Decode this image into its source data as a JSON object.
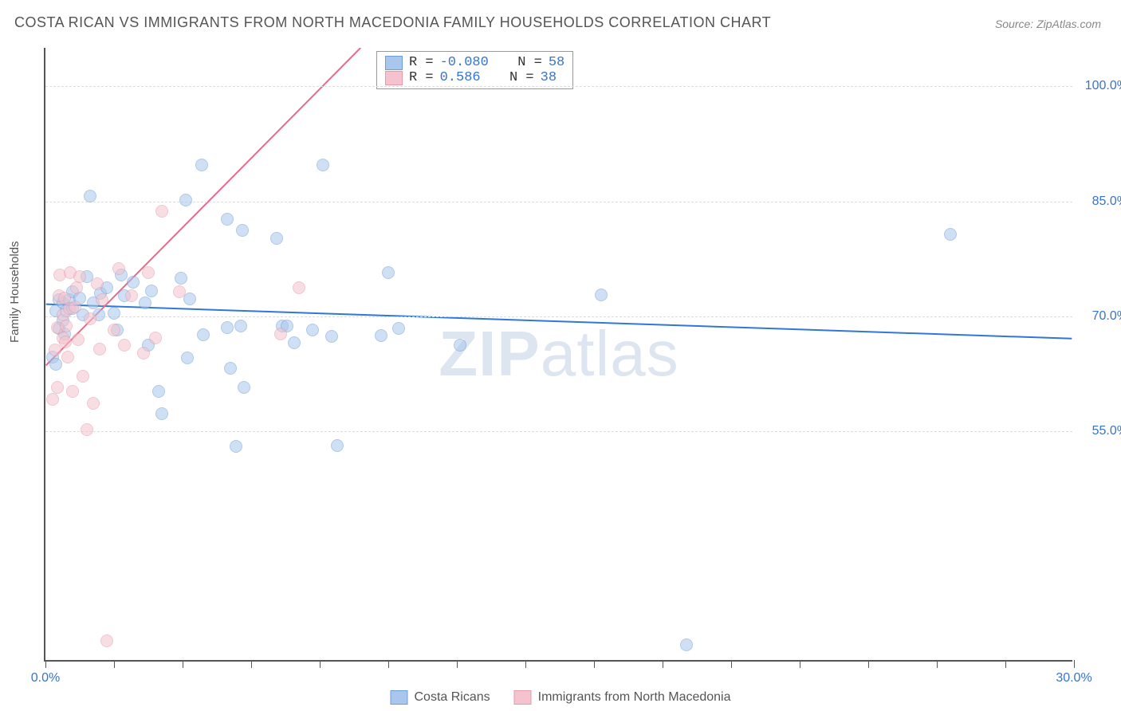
{
  "title": "COSTA RICAN VS IMMIGRANTS FROM NORTH MACEDONIA FAMILY HOUSEHOLDS CORRELATION CHART",
  "source": "Source: ZipAtlas.com",
  "watermark": "ZIPatlas",
  "y_axis_label": "Family Households",
  "chart": {
    "type": "scatter",
    "xlim": [
      0,
      30
    ],
    "ylim": [
      25,
      105
    ],
    "background_color": "#ffffff",
    "grid_color": "#dddddd",
    "axis_color": "#555555",
    "y_ticks": [
      {
        "value": 55.0,
        "label": "55.0%"
      },
      {
        "value": 70.0,
        "label": "70.0%"
      },
      {
        "value": 85.0,
        "label": "85.0%"
      },
      {
        "value": 100.0,
        "label": "100.0%"
      }
    ],
    "x_tick_positions": [
      0,
      2,
      4,
      6,
      8,
      10,
      12,
      14,
      16,
      18,
      20,
      22,
      24,
      26,
      28,
      30
    ],
    "x_tick_labels": [
      {
        "value": 0.0,
        "label": "0.0%"
      },
      {
        "value": 30.0,
        "label": "30.0%"
      }
    ],
    "y_tick_label_color": "#3973cc",
    "x_tick_label_color": "#3973cc",
    "point_radius": 8,
    "point_opacity": 0.55,
    "series": [
      {
        "name": "Costa Ricans",
        "fill_color": "#a9c7ec",
        "stroke_color": "#6f9ed6",
        "correlation_R": "-0.080",
        "correlation_N": "58",
        "trendline": {
          "color": "#2f78d6",
          "width": 2,
          "x1": 0,
          "y1": 71.5,
          "x2": 30,
          "y2": 67.0
        },
        "points": [
          [
            0.2,
            64.5
          ],
          [
            0.3,
            70.5
          ],
          [
            0.4,
            72.0
          ],
          [
            0.4,
            68.2
          ],
          [
            0.5,
            69.3
          ],
          [
            0.5,
            71.5
          ],
          [
            0.55,
            67.5
          ],
          [
            0.6,
            70.5
          ],
          [
            0.7,
            72.0
          ],
          [
            0.8,
            70.8
          ],
          [
            0.8,
            73.0
          ],
          [
            1.0,
            72.2
          ],
          [
            1.1,
            70.0
          ],
          [
            1.2,
            75.0
          ],
          [
            1.3,
            85.5
          ],
          [
            1.4,
            71.5
          ],
          [
            1.55,
            70.0
          ],
          [
            1.6,
            72.8
          ],
          [
            1.8,
            73.5
          ],
          [
            2.0,
            70.2
          ],
          [
            2.1,
            68.0
          ],
          [
            2.2,
            75.2
          ],
          [
            2.3,
            72.5
          ],
          [
            2.55,
            74.3
          ],
          [
            2.9,
            71.5
          ],
          [
            3.0,
            66.0
          ],
          [
            3.1,
            73.1
          ],
          [
            3.3,
            60.0
          ],
          [
            3.4,
            57.1
          ],
          [
            3.95,
            74.8
          ],
          [
            4.1,
            85.0
          ],
          [
            4.15,
            64.4
          ],
          [
            4.2,
            72.1
          ],
          [
            4.55,
            89.5
          ],
          [
            4.6,
            67.4
          ],
          [
            5.3,
            82.5
          ],
          [
            5.3,
            68.3
          ],
          [
            5.4,
            63.0
          ],
          [
            5.55,
            52.8
          ],
          [
            5.7,
            68.5
          ],
          [
            5.75,
            81.0
          ],
          [
            5.8,
            60.5
          ],
          [
            6.75,
            80.0
          ],
          [
            6.9,
            68.5
          ],
          [
            7.05,
            68.5
          ],
          [
            7.25,
            66.4
          ],
          [
            7.8,
            68.0
          ],
          [
            8.1,
            89.5
          ],
          [
            8.35,
            67.2
          ],
          [
            8.5,
            53.0
          ],
          [
            9.8,
            67.3
          ],
          [
            10.0,
            75.5
          ],
          [
            10.3,
            68.2
          ],
          [
            12.1,
            66.0
          ],
          [
            16.2,
            72.6
          ],
          [
            18.7,
            27.0
          ],
          [
            26.4,
            80.5
          ],
          [
            0.3,
            63.5
          ]
        ]
      },
      {
        "name": "Immigrants from North Macedonia",
        "fill_color": "#f4c3cd",
        "stroke_color": "#e59aad",
        "correlation_R": "0.586",
        "correlation_N": "38",
        "trendline": {
          "color": "#e86a8c",
          "width": 2,
          "x1": 0,
          "y1": 63.5,
          "x2": 9.2,
          "y2": 105.0
        },
        "points": [
          [
            0.2,
            59.0
          ],
          [
            0.27,
            65.4
          ],
          [
            0.35,
            68.3
          ],
          [
            0.35,
            60.5
          ],
          [
            0.4,
            72.5
          ],
          [
            0.42,
            75.2
          ],
          [
            0.5,
            70.0
          ],
          [
            0.5,
            67.0
          ],
          [
            0.55,
            72.2
          ],
          [
            0.58,
            66.5
          ],
          [
            0.6,
            68.5
          ],
          [
            0.65,
            64.5
          ],
          [
            0.7,
            70.8
          ],
          [
            0.72,
            75.5
          ],
          [
            0.78,
            60.0
          ],
          [
            0.85,
            71.0
          ],
          [
            0.9,
            73.5
          ],
          [
            0.95,
            66.8
          ],
          [
            1.0,
            75.0
          ],
          [
            1.1,
            62.0
          ],
          [
            1.2,
            55.0
          ],
          [
            1.3,
            69.5
          ],
          [
            1.4,
            58.5
          ],
          [
            1.5,
            74.0
          ],
          [
            1.58,
            65.5
          ],
          [
            1.65,
            72.0
          ],
          [
            1.8,
            27.5
          ],
          [
            2.0,
            68.0
          ],
          [
            2.15,
            76.0
          ],
          [
            2.3,
            66.0
          ],
          [
            2.5,
            72.5
          ],
          [
            2.85,
            65.0
          ],
          [
            3.0,
            75.5
          ],
          [
            3.2,
            67.0
          ],
          [
            3.4,
            83.5
          ],
          [
            3.9,
            73.0
          ],
          [
            6.85,
            67.5
          ],
          [
            7.4,
            73.5
          ]
        ]
      }
    ]
  },
  "stats_legend": {
    "rows": [
      {
        "swatch_fill": "#a9c7ec",
        "swatch_stroke": "#6f9ed6",
        "r_label": "R =",
        "r_value": "-0.080",
        "n_label": "N =",
        "n_value": "58"
      },
      {
        "swatch_fill": "#f4c3cd",
        "swatch_stroke": "#e59aad",
        "r_label": "R =",
        "r_value": " 0.586",
        "n_label": "N =",
        "n_value": "38"
      }
    ]
  },
  "bottom_legend": {
    "items": [
      {
        "swatch_fill": "#a9c7ec",
        "swatch_stroke": "#6f9ed6",
        "label": "Costa Ricans"
      },
      {
        "swatch_fill": "#f4c3cd",
        "swatch_stroke": "#e59aad",
        "label": "Immigrants from North Macedonia"
      }
    ]
  }
}
